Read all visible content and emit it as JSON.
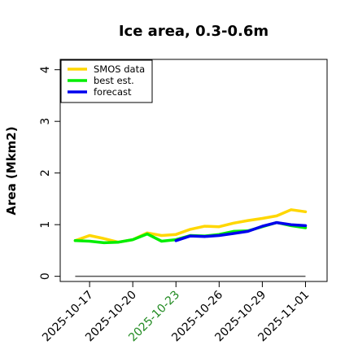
{
  "chart_data": {
    "type": "line",
    "title": "Ice area, 0.3-0.6m",
    "xlabel": "",
    "ylabel": "Area (Mkm2)",
    "ylim": [
      -0.1,
      4.2
    ],
    "yticks": [
      0,
      1,
      2,
      3,
      4
    ],
    "x_tick_labels": [
      "2025-10-17",
      "2025-10-20",
      "2025-10-23",
      "2025-10-26",
      "2025-10-29",
      "2025-11-01"
    ],
    "highlighted_tick": "2025-10-23",
    "highlight_color": "#228B22",
    "legend_position": "top-left",
    "grid": false,
    "series": [
      {
        "name": "SMOS data",
        "color": "#FFD700",
        "x": [
          "2025-10-16",
          "2025-10-17",
          "2025-10-18",
          "2025-10-19",
          "2025-10-20",
          "2025-10-21",
          "2025-10-22",
          "2025-10-23",
          "2025-10-24",
          "2025-10-25",
          "2025-10-26",
          "2025-10-27",
          "2025-10-28",
          "2025-10-29",
          "2025-10-30",
          "2025-10-31",
          "2025-11-01"
        ],
        "values": [
          0.69,
          0.79,
          0.73,
          0.66,
          0.71,
          0.84,
          0.79,
          0.81,
          0.91,
          0.97,
          0.96,
          1.03,
          1.08,
          1.12,
          1.17,
          1.29,
          1.25
        ]
      },
      {
        "name": "best est.",
        "color": "#00EE00",
        "x": [
          "2025-10-16",
          "2025-10-17",
          "2025-10-18",
          "2025-10-19",
          "2025-10-20",
          "2025-10-21",
          "2025-10-22",
          "2025-10-23",
          "2025-10-24",
          "2025-10-25",
          "2025-10-26",
          "2025-10-27",
          "2025-10-28",
          "2025-10-29",
          "2025-10-30",
          "2025-10-31",
          "2025-11-01"
        ],
        "values": [
          0.69,
          0.68,
          0.65,
          0.66,
          0.71,
          0.82,
          0.68,
          0.71,
          0.79,
          0.78,
          0.81,
          0.87,
          0.88,
          0.96,
          1.04,
          0.98,
          0.94
        ]
      },
      {
        "name": "forecast",
        "color": "#0000EE",
        "x": [
          "2025-10-23",
          "2025-10-24",
          "2025-10-25",
          "2025-10-26",
          "2025-10-27",
          "2025-10-28",
          "2025-10-29",
          "2025-10-30",
          "2025-10-31",
          "2025-11-01"
        ],
        "values": [
          0.69,
          0.78,
          0.77,
          0.79,
          0.83,
          0.87,
          0.97,
          1.04,
          1.0,
          0.98
        ]
      }
    ],
    "reference_line": {
      "color": "#555555",
      "value": 0.0
    }
  }
}
